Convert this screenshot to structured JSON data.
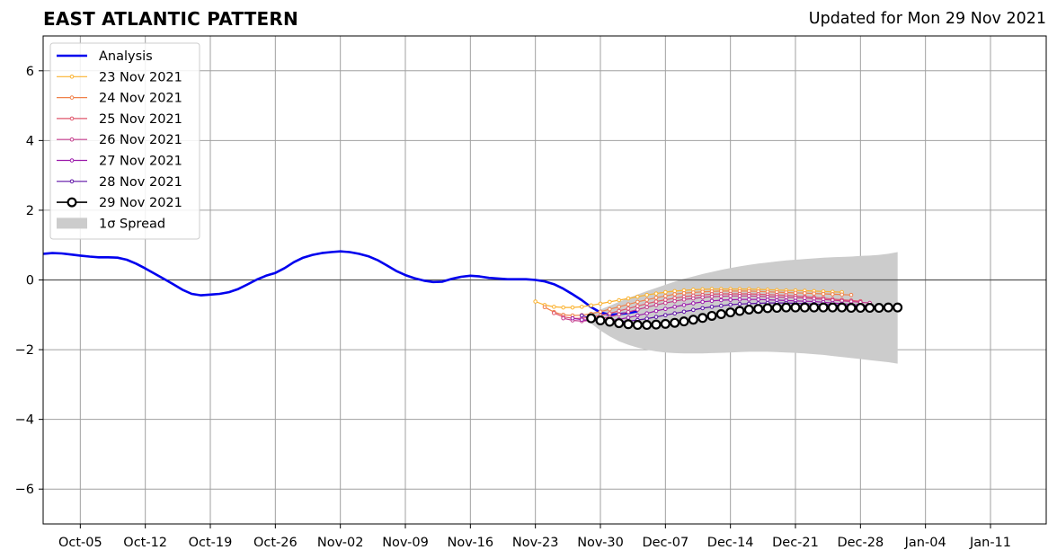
{
  "title": "EAST ATLANTIC PATTERN",
  "subtitle": "Updated for Mon 29 Nov 2021",
  "chart_data": {
    "type": "line",
    "title": "EAST ATLANTIC PATTERN",
    "xlabel": "",
    "ylabel": "",
    "x_axis_type": "date",
    "xlim": [
      "2021-10-01",
      "2022-01-17"
    ],
    "ylim": [
      -7,
      7
    ],
    "y_ticks": [
      -6,
      -4,
      -2,
      0,
      2,
      4,
      6
    ],
    "y_tick_labels": [
      "−6",
      "−4",
      "−2",
      "0",
      "2",
      "4",
      "6"
    ],
    "x_ticks": [
      "2021-10-05",
      "2021-10-12",
      "2021-10-19",
      "2021-10-26",
      "2021-11-02",
      "2021-11-09",
      "2021-11-16",
      "2021-11-23",
      "2021-11-30",
      "2021-12-07",
      "2021-12-14",
      "2021-12-21",
      "2021-12-28",
      "2022-01-04",
      "2022-01-11"
    ],
    "x_tick_labels": [
      "Oct-05",
      "Oct-12",
      "Oct-19",
      "Oct-26",
      "Nov-02",
      "Nov-09",
      "Nov-16",
      "Nov-23",
      "Nov-30",
      "Dec-07",
      "Dec-14",
      "Dec-21",
      "Dec-28",
      "Jan-04",
      "Jan-11"
    ],
    "grid": true,
    "zero_line": true,
    "legend_position": "top-left",
    "legend_labels": [
      "Analysis",
      "23 Nov 2021",
      "24 Nov 2021",
      "25 Nov 2021",
      "26 Nov 2021",
      "27 Nov 2021",
      "28 Nov 2021",
      "29 Nov 2021",
      "1σ Spread"
    ],
    "analysis": {
      "name": "Analysis",
      "color": "#0000ee",
      "start": "2021-10-01",
      "values": [
        0.75,
        0.77,
        0.76,
        0.73,
        0.7,
        0.67,
        0.65,
        0.65,
        0.64,
        0.58,
        0.47,
        0.33,
        0.18,
        0.03,
        -0.12,
        -0.28,
        -0.4,
        -0.44,
        -0.42,
        -0.4,
        -0.35,
        -0.26,
        -0.13,
        0.01,
        0.12,
        0.2,
        0.34,
        0.51,
        0.64,
        0.72,
        0.77,
        0.8,
        0.82,
        0.8,
        0.75,
        0.68,
        0.57,
        0.42,
        0.26,
        0.14,
        0.05,
        -0.02,
        -0.06,
        -0.05,
        0.03,
        0.09,
        0.12,
        0.1,
        0.06,
        0.04,
        0.02,
        0.02,
        0.02,
        0.0,
        -0.04,
        -0.12,
        -0.25,
        -0.41,
        -0.58,
        -0.78,
        -0.93,
        -1.0,
        -0.98,
        -0.95,
        -0.9
      ]
    },
    "forecasts": [
      {
        "name": "23 Nov 2021",
        "color": "#fbb22e",
        "start": "2021-11-23",
        "values": [
          -0.62,
          -0.72,
          -0.77,
          -0.79,
          -0.79,
          -0.77,
          -0.73,
          -0.68,
          -0.63,
          -0.58,
          -0.53,
          -0.48,
          -0.43,
          -0.39,
          -0.35,
          -0.32,
          -0.3,
          -0.28,
          -0.27,
          -0.26,
          -0.26,
          -0.26,
          -0.26,
          -0.26,
          -0.27,
          -0.28,
          -0.29,
          -0.3,
          -0.3,
          -0.31,
          -0.32,
          -0.33,
          -0.34,
          -0.35
        ]
      },
      {
        "name": "24 Nov 2021",
        "color": "#f0814a",
        "start": "2021-11-24",
        "values": [
          -0.78,
          -0.92,
          -1.0,
          -1.02,
          -1.01,
          -0.97,
          -0.91,
          -0.84,
          -0.77,
          -0.7,
          -0.63,
          -0.57,
          -0.51,
          -0.46,
          -0.41,
          -0.38,
          -0.36,
          -0.34,
          -0.33,
          -0.32,
          -0.32,
          -0.32,
          -0.32,
          -0.33,
          -0.34,
          -0.35,
          -0.36,
          -0.37,
          -0.38,
          -0.39,
          -0.4,
          -0.41,
          -0.42,
          -0.43
        ]
      },
      {
        "name": "25 Nov 2021",
        "color": "#e0566c",
        "start": "2021-11-25",
        "values": [
          -0.95,
          -1.06,
          -1.1,
          -1.1,
          -1.07,
          -1.02,
          -0.96,
          -0.89,
          -0.82,
          -0.75,
          -0.68,
          -0.62,
          -0.57,
          -0.52,
          -0.48,
          -0.45,
          -0.43,
          -0.41,
          -0.4,
          -0.4,
          -0.4,
          -0.4,
          -0.41,
          -0.42,
          -0.43,
          -0.44,
          -0.46,
          -0.48,
          -0.5,
          -0.52,
          -0.55,
          -0.57,
          -0.59,
          -0.61
        ]
      },
      {
        "name": "26 Nov 2021",
        "color": "#c43c8c",
        "start": "2021-11-26",
        "values": [
          -1.1,
          -1.16,
          -1.18,
          -1.16,
          -1.12,
          -1.06,
          -0.99,
          -0.92,
          -0.85,
          -0.78,
          -0.72,
          -0.66,
          -0.61,
          -0.56,
          -0.53,
          -0.5,
          -0.48,
          -0.47,
          -0.46,
          -0.46,
          -0.46,
          -0.47,
          -0.48,
          -0.49,
          -0.5,
          -0.51,
          -0.52,
          -0.54,
          -0.56,
          -0.58,
          -0.6,
          -0.62,
          -0.64,
          -0.66
        ]
      },
      {
        "name": "27 Nov 2021",
        "color": "#9b1aab",
        "start": "2021-11-27",
        "values": [
          -1.1,
          -1.14,
          -1.16,
          -1.17,
          -1.16,
          -1.13,
          -1.08,
          -1.02,
          -0.96,
          -0.89,
          -0.83,
          -0.77,
          -0.72,
          -0.67,
          -0.63,
          -0.6,
          -0.58,
          -0.57,
          -0.56,
          -0.56,
          -0.56,
          -0.57,
          -0.58,
          -0.59,
          -0.6,
          -0.61,
          -0.62,
          -0.64,
          -0.66,
          -0.68,
          -0.7,
          -0.72,
          -0.74,
          -0.76
        ]
      },
      {
        "name": "28 Nov 2021",
        "color": "#5e12a6",
        "start": "2021-11-28",
        "values": [
          -1.02,
          -1.1,
          -1.15,
          -1.18,
          -1.19,
          -1.18,
          -1.15,
          -1.11,
          -1.06,
          -1.01,
          -0.96,
          -0.91,
          -0.86,
          -0.81,
          -0.77,
          -0.74,
          -0.71,
          -0.69,
          -0.68,
          -0.67,
          -0.66,
          -0.66,
          -0.66,
          -0.67,
          -0.68,
          -0.69,
          -0.7,
          -0.71,
          -0.73,
          -0.74,
          -0.76,
          -0.77,
          -0.79,
          -0.8
        ]
      },
      {
        "name": "29 Nov 2021",
        "color": "#000000",
        "start": "2021-11-29",
        "values": [
          -1.1,
          -1.16,
          -1.2,
          -1.24,
          -1.27,
          -1.29,
          -1.29,
          -1.28,
          -1.26,
          -1.23,
          -1.19,
          -1.14,
          -1.09,
          -1.03,
          -0.98,
          -0.93,
          -0.89,
          -0.85,
          -0.83,
          -0.81,
          -0.8,
          -0.79,
          -0.79,
          -0.79,
          -0.79,
          -0.79,
          -0.79,
          -0.79,
          -0.8,
          -0.8,
          -0.8,
          -0.8,
          -0.79,
          -0.79
        ]
      }
    ],
    "spread": {
      "name": "1σ Spread",
      "color": "#cccccc",
      "start": "2021-11-29",
      "upper": [
        -0.95,
        -0.85,
        -0.74,
        -0.63,
        -0.52,
        -0.42,
        -0.32,
        -0.23,
        -0.14,
        -0.05,
        0.03,
        0.1,
        0.17,
        0.23,
        0.29,
        0.34,
        0.39,
        0.43,
        0.47,
        0.5,
        0.53,
        0.56,
        0.58,
        0.6,
        0.62,
        0.64,
        0.65,
        0.66,
        0.67,
        0.69,
        0.7,
        0.72,
        0.75,
        0.8
      ],
      "lower": [
        -1.25,
        -1.45,
        -1.62,
        -1.76,
        -1.86,
        -1.94,
        -2.0,
        -2.05,
        -2.08,
        -2.1,
        -2.11,
        -2.11,
        -2.11,
        -2.1,
        -2.09,
        -2.08,
        -2.07,
        -2.06,
        -2.06,
        -2.06,
        -2.07,
        -2.08,
        -2.09,
        -2.11,
        -2.13,
        -2.15,
        -2.18,
        -2.21,
        -2.24,
        -2.27,
        -2.3,
        -2.33,
        -2.36,
        -2.4
      ]
    }
  }
}
